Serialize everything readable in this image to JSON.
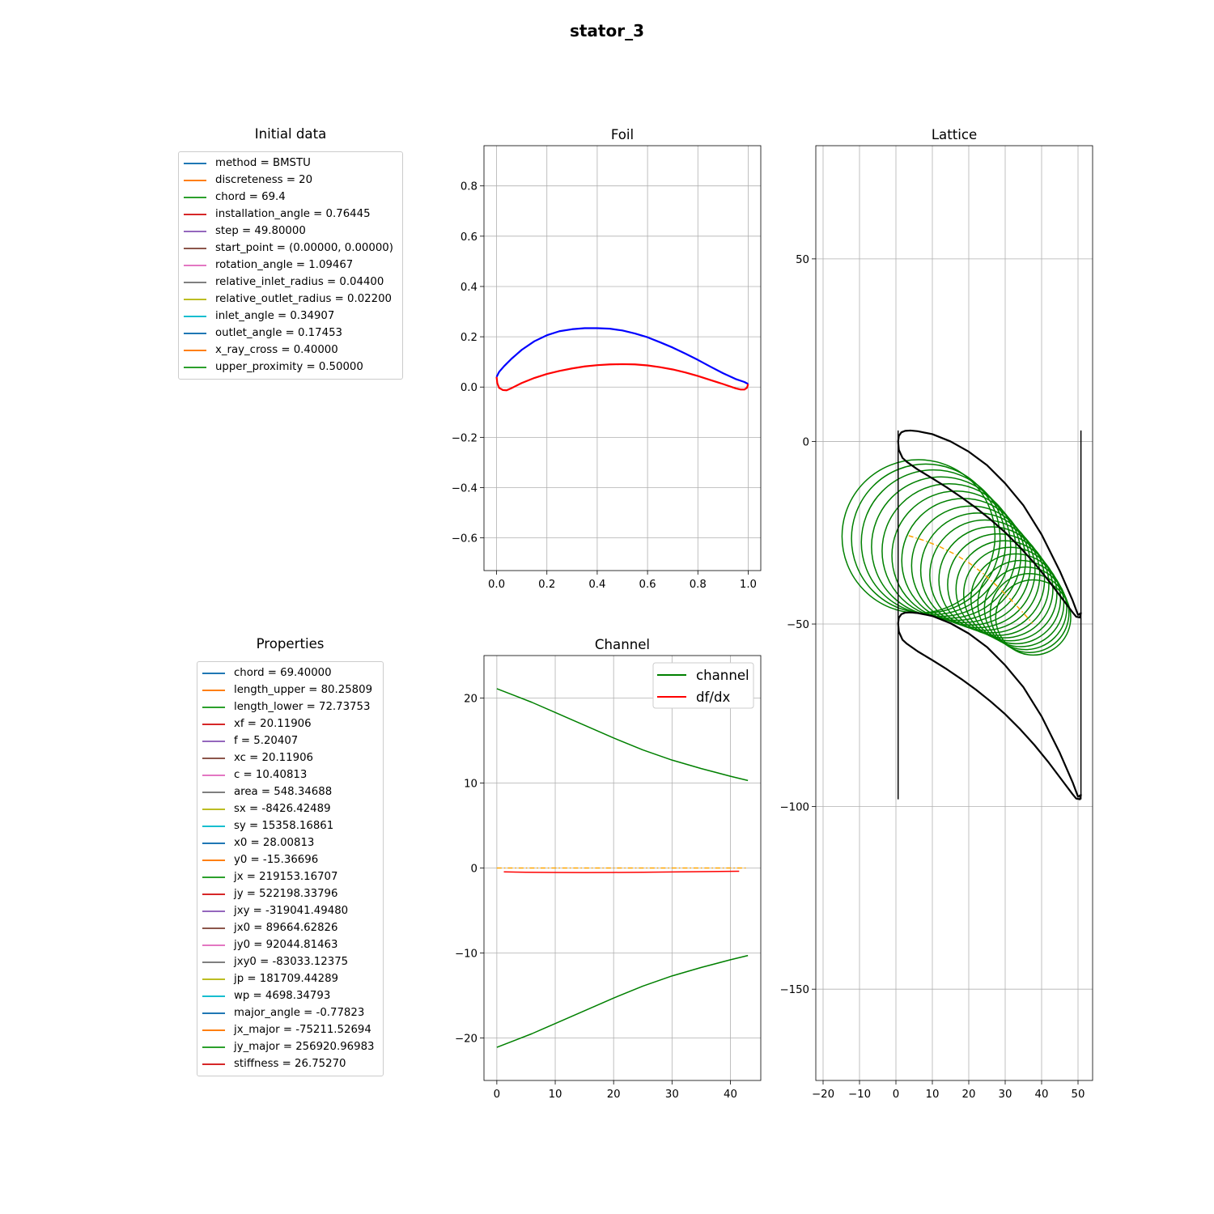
{
  "figure": {
    "suptitle": "stator_3"
  },
  "initial_data": {
    "title": "Initial data",
    "entries": [
      {
        "label": "method = BMSTU",
        "color": "#1f77b4"
      },
      {
        "label": "discreteness = 20",
        "color": "#ff7f0e"
      },
      {
        "label": "chord = 69.4",
        "color": "#2ca02c"
      },
      {
        "label": "installation_angle = 0.76445",
        "color": "#d62728"
      },
      {
        "label": "step = 49.80000",
        "color": "#9467bd"
      },
      {
        "label": "start_point = (0.00000, 0.00000)",
        "color": "#8c564b"
      },
      {
        "label": "rotation_angle = 1.09467",
        "color": "#e377c2"
      },
      {
        "label": "relative_inlet_radius = 0.04400",
        "color": "#7f7f7f"
      },
      {
        "label": "relative_outlet_radius = 0.02200",
        "color": "#bcbd22"
      },
      {
        "label": "inlet_angle = 0.34907",
        "color": "#17becf"
      },
      {
        "label": "outlet_angle = 0.17453",
        "color": "#1f77b4"
      },
      {
        "label": "x_ray_cross = 0.40000",
        "color": "#ff7f0e"
      },
      {
        "label": "upper_proximity = 0.50000",
        "color": "#2ca02c"
      }
    ]
  },
  "properties": {
    "title": "Properties",
    "entries": [
      {
        "label": "chord = 69.40000",
        "color": "#1f77b4"
      },
      {
        "label": "length_upper = 80.25809",
        "color": "#ff7f0e"
      },
      {
        "label": "length_lower = 72.73753",
        "color": "#2ca02c"
      },
      {
        "label": "xf = 20.11906",
        "color": "#d62728"
      },
      {
        "label": "f = 5.20407",
        "color": "#9467bd"
      },
      {
        "label": "xc = 20.11906",
        "color": "#8c564b"
      },
      {
        "label": "c = 10.40813",
        "color": "#e377c2"
      },
      {
        "label": "area = 548.34688",
        "color": "#7f7f7f"
      },
      {
        "label": "sx = -8426.42489",
        "color": "#bcbd22"
      },
      {
        "label": "sy = 15358.16861",
        "color": "#17becf"
      },
      {
        "label": "x0 = 28.00813",
        "color": "#1f77b4"
      },
      {
        "label": "y0 = -15.36696",
        "color": "#ff7f0e"
      },
      {
        "label": "jx = 219153.16707",
        "color": "#2ca02c"
      },
      {
        "label": "jy = 522198.33796",
        "color": "#d62728"
      },
      {
        "label": "jxy = -319041.49480",
        "color": "#9467bd"
      },
      {
        "label": "jx0 = 89664.62826",
        "color": "#8c564b"
      },
      {
        "label": "jy0 = 92044.81463",
        "color": "#e377c2"
      },
      {
        "label": "jxy0 = -83033.12375",
        "color": "#7f7f7f"
      },
      {
        "label": "jp = 181709.44289",
        "color": "#bcbd22"
      },
      {
        "label": "wp = 4698.34793",
        "color": "#17becf"
      },
      {
        "label": "major_angle = -0.77823",
        "color": "#1f77b4"
      },
      {
        "label": "jx_major = -75211.52694",
        "color": "#ff7f0e"
      },
      {
        "label": "jy_major = 256920.96983",
        "color": "#2ca02c"
      },
      {
        "label": "stiffness = 26.75270",
        "color": "#d62728"
      }
    ]
  },
  "chart_data": [
    {
      "id": "foil",
      "type": "line",
      "title": "Foil",
      "xlim": [
        -0.05,
        1.05
      ],
      "ylim": [
        -0.73,
        0.96
      ],
      "xticks": [
        0.0,
        0.2,
        0.4,
        0.6,
        0.8,
        1.0
      ],
      "xtick_labels": [
        "0.0",
        "0.2",
        "0.4",
        "0.6",
        "0.8",
        "1.0"
      ],
      "yticks": [
        -0.6,
        -0.4,
        -0.2,
        0.0,
        0.2,
        0.4,
        0.6,
        0.8
      ],
      "ytick_labels": [
        "−0.6",
        "−0.4",
        "−0.2",
        "0.0",
        "0.2",
        "0.4",
        "0.6",
        "0.8"
      ],
      "grid": true,
      "series": [
        {
          "color": "#0000ff",
          "x": [
            0.0,
            0.01,
            0.03,
            0.06,
            0.1,
            0.15,
            0.2,
            0.25,
            0.3,
            0.35,
            0.4,
            0.45,
            0.5,
            0.55,
            0.6,
            0.65,
            0.7,
            0.75,
            0.8,
            0.85,
            0.9,
            0.95,
            0.985,
            1.0,
            1.0
          ],
          "y": [
            0.04,
            0.06,
            0.083,
            0.113,
            0.148,
            0.182,
            0.206,
            0.222,
            0.23,
            0.234,
            0.234,
            0.232,
            0.225,
            0.213,
            0.198,
            0.178,
            0.157,
            0.133,
            0.108,
            0.081,
            0.055,
            0.032,
            0.02,
            0.012,
            0.012
          ]
        },
        {
          "color": "#ff0000",
          "x": [
            0.0,
            0.003,
            0.01,
            0.025,
            0.04,
            0.06,
            0.1,
            0.15,
            0.2,
            0.25,
            0.3,
            0.35,
            0.4,
            0.45,
            0.5,
            0.55,
            0.6,
            0.65,
            0.7,
            0.75,
            0.8,
            0.85,
            0.9,
            0.95,
            0.97,
            0.985,
            0.995,
            1.0
          ],
          "y": [
            0.04,
            0.015,
            -0.003,
            -0.012,
            -0.013,
            -0.004,
            0.016,
            0.036,
            0.052,
            0.064,
            0.074,
            0.082,
            0.087,
            0.09,
            0.091,
            0.09,
            0.086,
            0.079,
            0.07,
            0.058,
            0.044,
            0.028,
            0.012,
            -0.005,
            -0.01,
            -0.01,
            -0.003,
            0.012
          ]
        }
      ]
    },
    {
      "id": "channel",
      "type": "line",
      "title": "Channel",
      "xlim": [
        -2.2,
        45.2
      ],
      "ylim": [
        -25,
        25
      ],
      "xticks": [
        0,
        10,
        20,
        30,
        40
      ],
      "xtick_labels": [
        "0",
        "10",
        "20",
        "30",
        "40"
      ],
      "yticks": [
        -20,
        -10,
        0,
        10,
        20
      ],
      "ytick_labels": [
        "−20",
        "−10",
        "0",
        "10",
        "20"
      ],
      "grid": true,
      "legend": {
        "position": "upper right",
        "entries": [
          {
            "label": "channel",
            "color": "#008000"
          },
          {
            "label": "df/dx",
            "color": "#ff0000"
          }
        ]
      },
      "series": [
        {
          "color": "#008000",
          "x": [
            0,
            3,
            6,
            10,
            15,
            20,
            25,
            30,
            35,
            40,
            43
          ],
          "y": [
            21.1,
            20.3,
            19.5,
            18.3,
            16.8,
            15.3,
            13.9,
            12.7,
            11.7,
            10.8,
            10.3
          ]
        },
        {
          "color": "#008000",
          "x": [
            0,
            3,
            6,
            10,
            15,
            20,
            25,
            30,
            35,
            40,
            43
          ],
          "y": [
            -21.1,
            -20.3,
            -19.5,
            -18.3,
            -16.8,
            -15.3,
            -13.9,
            -12.7,
            -11.7,
            -10.8,
            -10.3
          ]
        },
        {
          "color": "#ff0000",
          "x": [
            1.2,
            5,
            10,
            15,
            20,
            25,
            30,
            35,
            41.5
          ],
          "y": [
            -0.45,
            -0.5,
            -0.52,
            -0.53,
            -0.52,
            -0.5,
            -0.47,
            -0.43,
            -0.38
          ]
        },
        {
          "color": "#ffa500",
          "dashed": true,
          "x": [
            0,
            43
          ],
          "y": [
            0,
            0
          ]
        }
      ]
    },
    {
      "id": "lattice",
      "type": "line",
      "title": "Lattice",
      "xlim": [
        -22,
        54
      ],
      "ylim": [
        -175,
        81
      ],
      "xticks": [
        -20,
        -10,
        0,
        10,
        20,
        30,
        40,
        50
      ],
      "xtick_labels": [
        "−20",
        "−10",
        "0",
        "10",
        "20",
        "30",
        "40",
        "50"
      ],
      "yticks": [
        -150,
        -100,
        -50,
        0,
        50
      ],
      "ytick_labels": [
        "−150",
        "−100",
        "−50",
        "0",
        "50"
      ],
      "grid": true,
      "profile": {
        "color": "#000000",
        "x": [
          0.6,
          0.8,
          1.5,
          2.5,
          4,
          6,
          10,
          15,
          20,
          25,
          30,
          35,
          40,
          45,
          48.5,
          50,
          50.8,
          50.5,
          49.5,
          48.5,
          46,
          42,
          38,
          34,
          30,
          26,
          22,
          18,
          14,
          10,
          6,
          3,
          1.8,
          0.8,
          0.6
        ],
        "y": [
          0,
          1.5,
          2.5,
          2.9,
          3.0,
          2.8,
          2.0,
          0.0,
          -2.8,
          -6.5,
          -11.5,
          -17.5,
          -25.5,
          -35.5,
          -43.5,
          -47.5,
          -47.0,
          -48.2,
          -48.0,
          -46.8,
          -43.5,
          -38.2,
          -33.3,
          -28.9,
          -24.9,
          -21.4,
          -18.2,
          -15.3,
          -12.6,
          -10.1,
          -7.7,
          -5.6,
          -4.5,
          -2.3,
          0
        ]
      },
      "profile_shift": -49.8,
      "vlines": [
        {
          "x": 0.6,
          "y": [
            3,
            -98
          ]
        },
        {
          "x": 50.8,
          "y": [
            3,
            -98
          ]
        }
      ],
      "circles": {
        "color": "#008000",
        "cx": [
          6.2,
          8.2,
          10.3,
          12.4,
          14.6,
          16.6,
          18.6,
          20.6,
          22.5,
          24.4,
          26.3,
          28.1,
          29.8,
          31.4,
          32.9,
          34.3,
          35.6,
          36.7,
          37.7
        ],
        "cy": [
          -26.0,
          -26.6,
          -27.6,
          -28.8,
          -30.0,
          -31.3,
          -32.6,
          -34.0,
          -35.3,
          -36.6,
          -37.9,
          -39.2,
          -40.5,
          -41.8,
          -43.1,
          -44.4,
          -45.7,
          -47.0,
          -48.2
        ],
        "r": [
          21.0,
          20.4,
          19.8,
          19.1,
          18.4,
          17.7,
          17.0,
          16.3,
          15.7,
          15.1,
          14.5,
          13.9,
          13.3,
          12.8,
          12.3,
          11.8,
          11.3,
          10.8,
          10.3
        ]
      },
      "midline": {
        "color": "#ffa500",
        "dashed": true,
        "x": [
          3.5,
          8,
          12,
          16,
          20,
          24,
          28,
          32,
          35,
          37.5
        ],
        "y": [
          -25.8,
          -27.2,
          -28.8,
          -30.8,
          -33.2,
          -36.2,
          -39.8,
          -43.8,
          -47.0,
          -49.8
        ]
      }
    }
  ]
}
